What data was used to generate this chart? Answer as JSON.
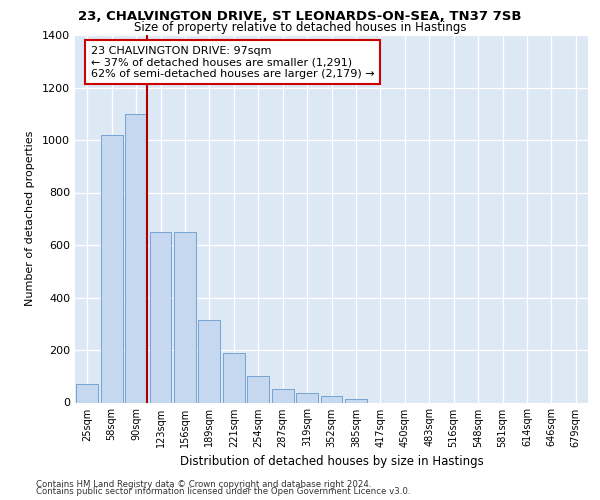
{
  "title_line1": "23, CHALVINGTON DRIVE, ST LEONARDS-ON-SEA, TN37 7SB",
  "title_line2": "Size of property relative to detached houses in Hastings",
  "xlabel": "Distribution of detached houses by size in Hastings",
  "ylabel": "Number of detached properties",
  "categories": [
    "25sqm",
    "58sqm",
    "90sqm",
    "123sqm",
    "156sqm",
    "189sqm",
    "221sqm",
    "254sqm",
    "287sqm",
    "319sqm",
    "352sqm",
    "385sqm",
    "417sqm",
    "450sqm",
    "483sqm",
    "516sqm",
    "548sqm",
    "581sqm",
    "614sqm",
    "646sqm",
    "679sqm"
  ],
  "values": [
    70,
    1020,
    1100,
    650,
    650,
    315,
    190,
    100,
    50,
    35,
    25,
    15,
    0,
    0,
    0,
    0,
    0,
    0,
    0,
    0,
    0
  ],
  "bar_color": "#c5d8f0",
  "bar_edge_color": "#6699cc",
  "vline_color": "#aa0000",
  "vline_x_index": 2,
  "annotation_line1": "23 CHALVINGTON DRIVE: 97sqm",
  "annotation_line2": "← 37% of detached houses are smaller (1,291)",
  "annotation_line3": "62% of semi-detached houses are larger (2,179) →",
  "annotation_box_facecolor": "#ffffff",
  "annotation_box_edgecolor": "#cc0000",
  "ylim": [
    0,
    1400
  ],
  "yticks": [
    0,
    200,
    400,
    600,
    800,
    1000,
    1200,
    1400
  ],
  "bg_color": "#dde8f5",
  "footnote1": "Contains HM Land Registry data © Crown copyright and database right 2024.",
  "footnote2": "Contains public sector information licensed under the Open Government Licence v3.0."
}
